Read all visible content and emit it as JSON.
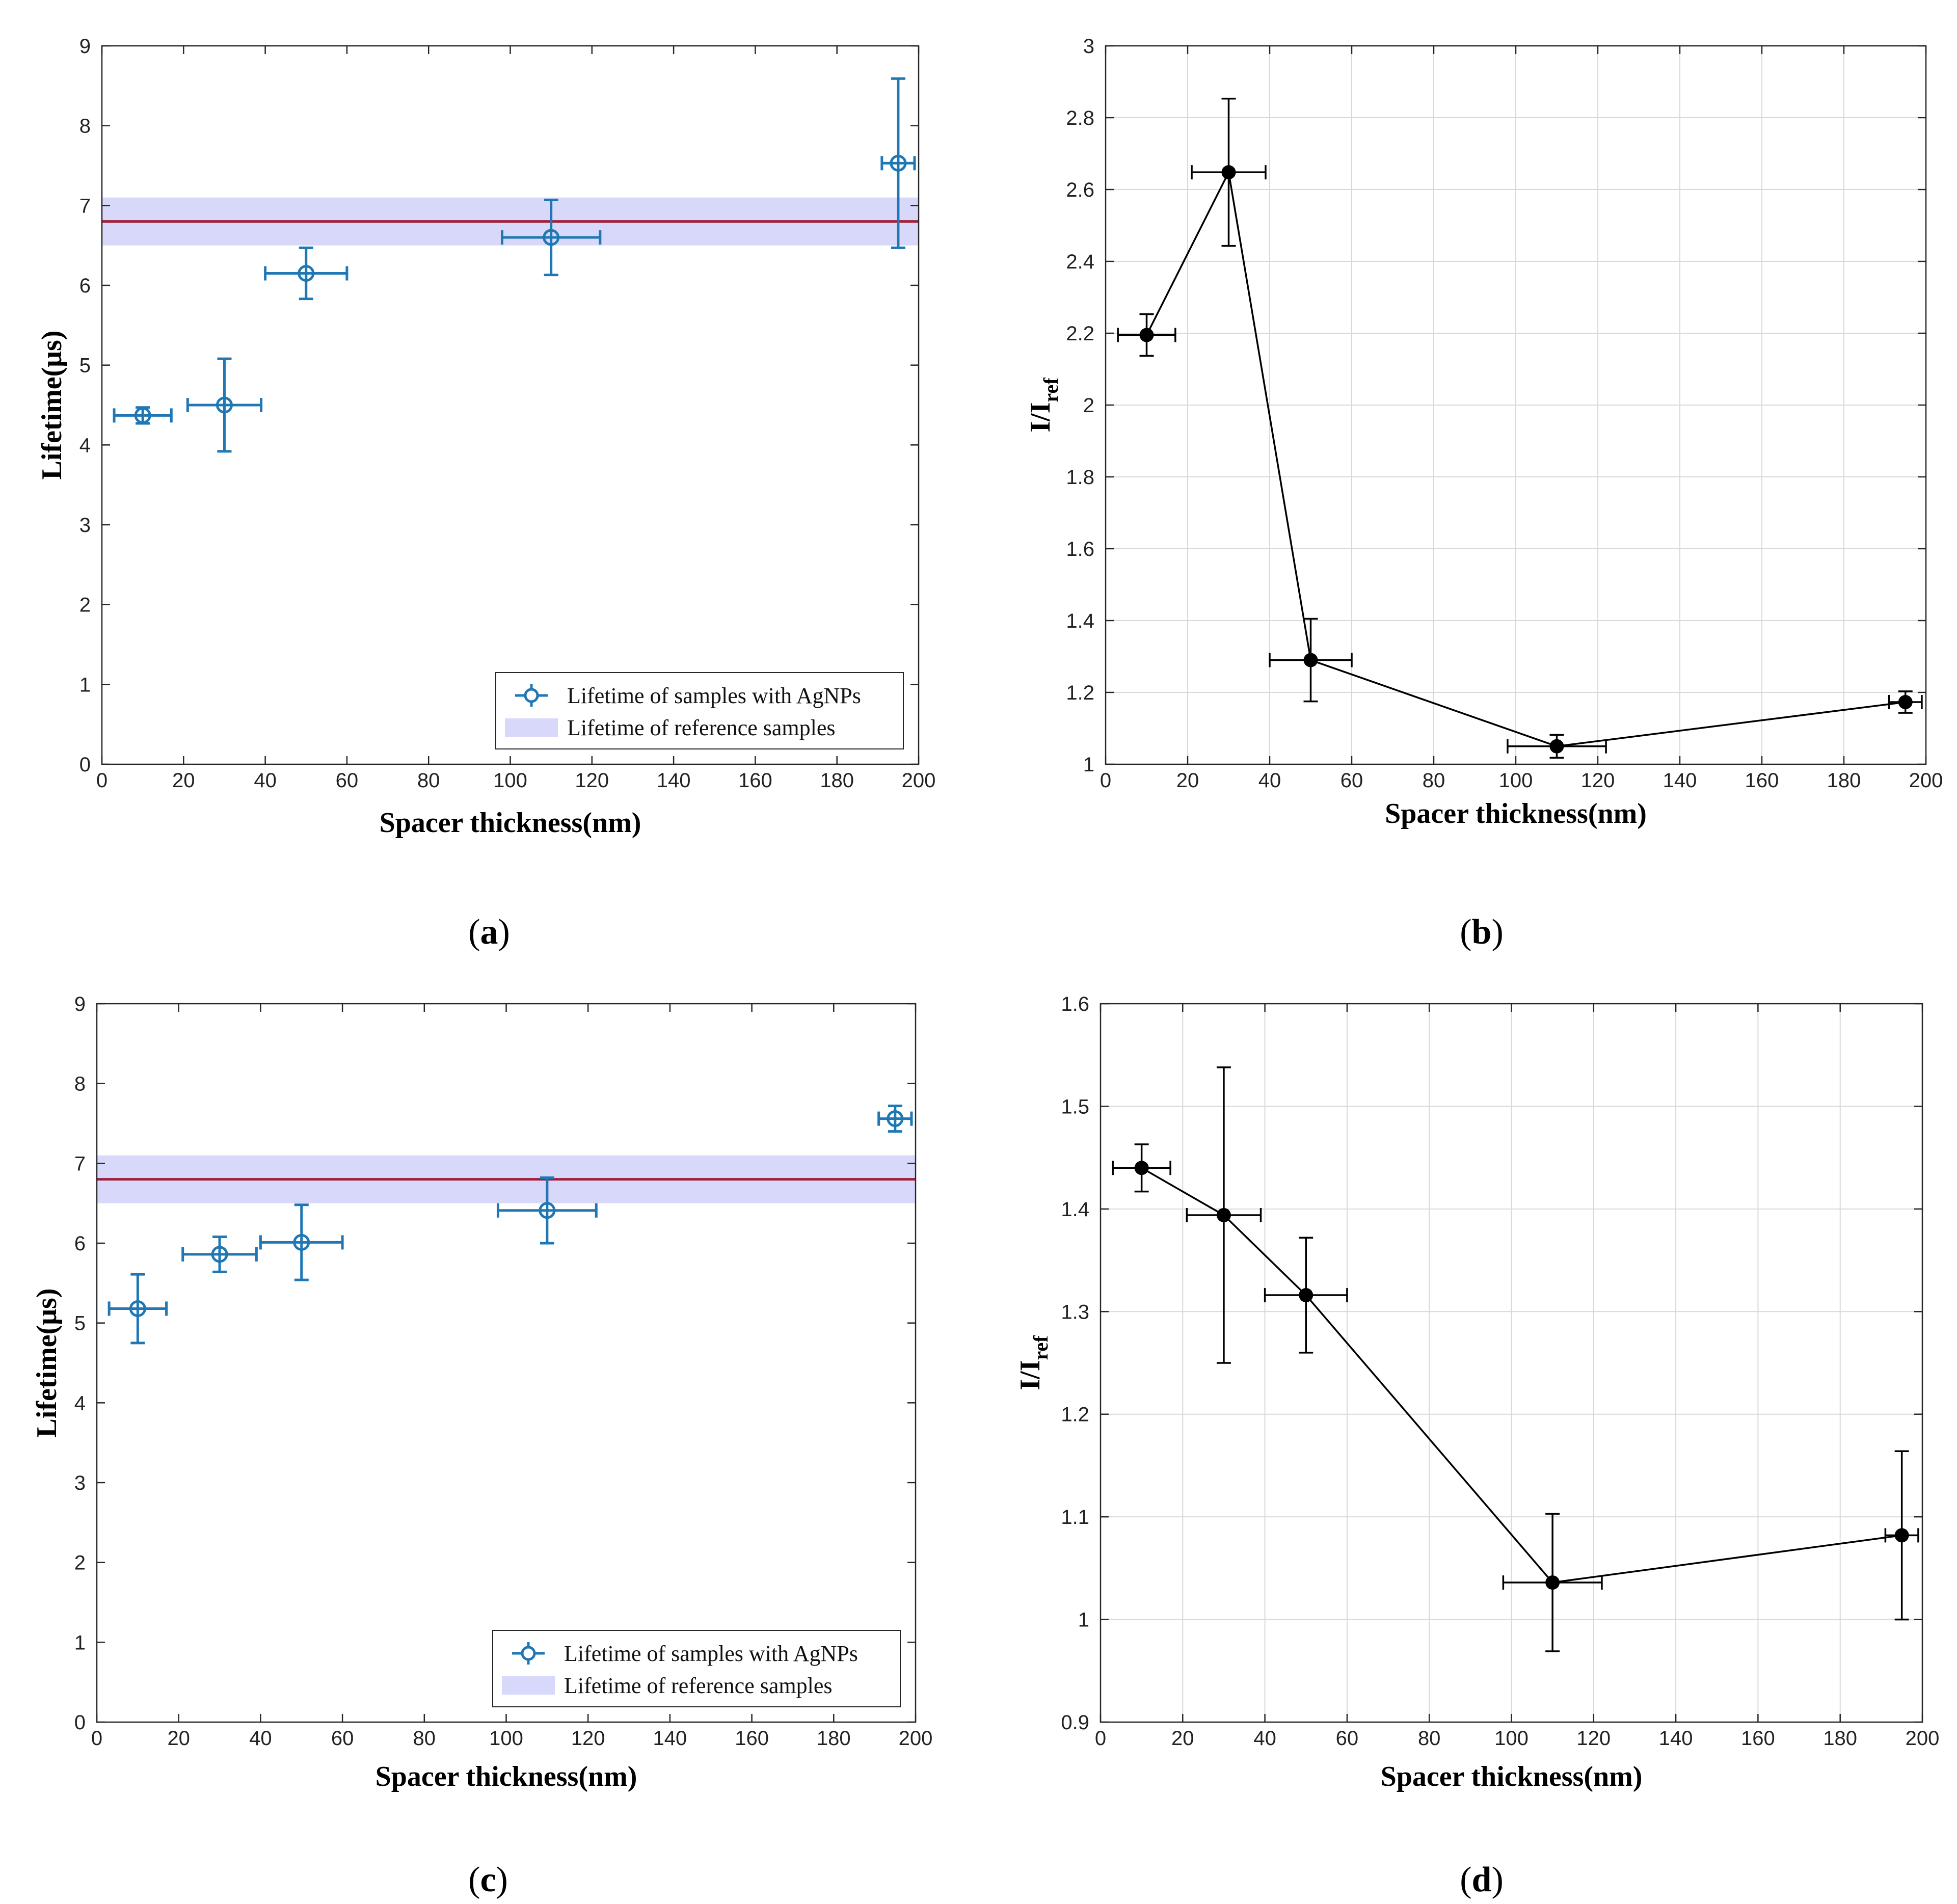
{
  "figure": {
    "captions": [
      "a",
      "b",
      "c",
      "d"
    ]
  },
  "chart_data": [
    {
      "type": "scatter",
      "panel": "a",
      "xlabel": "Spacer thickness(nm)",
      "ylabel": "Lifetime(μs)",
      "xlim": [
        0,
        200
      ],
      "ylim": [
        0,
        9
      ],
      "xticks": [
        0,
        20,
        40,
        60,
        80,
        100,
        120,
        140,
        160,
        180,
        200
      ],
      "yticks": [
        0,
        1,
        2,
        3,
        4,
        5,
        6,
        7,
        8,
        9
      ],
      "grid": false,
      "legend_position": "bottom-right",
      "series": [
        {
          "name": "Lifetime of samples with AgNPs",
          "style": "errorbar-circle",
          "color": "#1f77b4",
          "x": [
            10,
            30,
            50,
            110,
            195
          ],
          "y": [
            4.37,
            4.5,
            6.15,
            6.6,
            7.53
          ],
          "xerr": [
            7,
            9,
            10,
            12,
            4
          ],
          "yerr": [
            0.1,
            0.58,
            0.32,
            0.47,
            1.06
          ]
        }
      ],
      "reference_band": {
        "name": "Lifetime of reference samples",
        "center": 6.8,
        "low": 6.5,
        "high": 7.1,
        "line_color": "#a0203a",
        "band_color": "#d8d8fb"
      }
    },
    {
      "type": "line",
      "panel": "b",
      "xlabel": "Spacer thickness(nm)",
      "ylabel": "I/I",
      "ylabel_sub": "ref",
      "xlim": [
        0,
        200
      ],
      "ylim": [
        1,
        3
      ],
      "xticks": [
        0,
        20,
        40,
        60,
        80,
        100,
        120,
        140,
        160,
        180,
        200
      ],
      "yticks": [
        1,
        1.2,
        1.4,
        1.6,
        1.8,
        2,
        2.2,
        2.4,
        2.6,
        2.8,
        3
      ],
      "grid": true,
      "series": [
        {
          "style": "errorbar-line-dot",
          "color": "#000000",
          "x": [
            10,
            30,
            50,
            110,
            195
          ],
          "y": [
            2.195,
            2.648,
            1.29,
            1.05,
            1.173
          ],
          "xerr": [
            7,
            9,
            10,
            12,
            4
          ],
          "yerr": [
            0.058,
            0.205,
            0.115,
            0.032,
            0.03
          ]
        }
      ]
    },
    {
      "type": "scatter",
      "panel": "c",
      "xlabel": "Spacer thickness(nm)",
      "ylabel": "Lifetime(μs)",
      "xlim": [
        0,
        200
      ],
      "ylim": [
        0,
        9
      ],
      "xticks": [
        0,
        20,
        40,
        60,
        80,
        100,
        120,
        140,
        160,
        180,
        200
      ],
      "yticks": [
        0,
        1,
        2,
        3,
        4,
        5,
        6,
        7,
        8,
        9
      ],
      "grid": false,
      "legend_position": "bottom-right",
      "series": [
        {
          "name": "Lifetime of samples with AgNPs",
          "style": "errorbar-circle",
          "color": "#1f77b4",
          "x": [
            10,
            30,
            50,
            110,
            195
          ],
          "y": [
            5.18,
            5.86,
            6.01,
            6.41,
            7.56
          ],
          "xerr": [
            7,
            9,
            10,
            12,
            4
          ],
          "yerr": [
            0.43,
            0.22,
            0.47,
            0.41,
            0.16
          ]
        }
      ],
      "reference_band": {
        "name": "Lifetime of reference samples",
        "center": 6.8,
        "low": 6.5,
        "high": 7.1,
        "line_color": "#a0203a",
        "band_color": "#d8d8fb"
      }
    },
    {
      "type": "line",
      "panel": "d",
      "xlabel": "Spacer thickness(nm)",
      "ylabel": "I/I",
      "ylabel_sub": "ref",
      "xlim": [
        0,
        200
      ],
      "ylim": [
        0.9,
        1.6
      ],
      "xticks": [
        0,
        20,
        40,
        60,
        80,
        100,
        120,
        140,
        160,
        180,
        200
      ],
      "yticks": [
        0.9,
        1,
        1.1,
        1.2,
        1.3,
        1.4,
        1.5,
        1.6
      ],
      "grid": true,
      "series": [
        {
          "style": "errorbar-line-dot",
          "color": "#000000",
          "x": [
            10,
            30,
            50,
            110,
            195
          ],
          "y": [
            1.44,
            1.394,
            1.316,
            1.036,
            1.082
          ],
          "xerr": [
            7,
            9,
            10,
            12,
            4
          ],
          "yerr": [
            0.023,
            0.144,
            0.056,
            0.067,
            0.082
          ]
        }
      ]
    }
  ]
}
